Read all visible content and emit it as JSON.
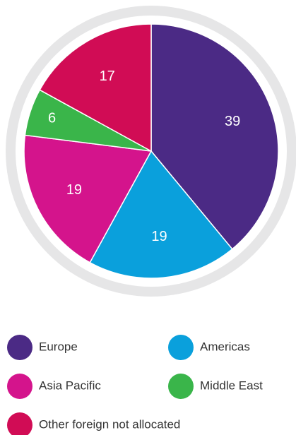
{
  "chart_data": {
    "type": "pie",
    "categories": [
      "Europe",
      "Americas",
      "Asia Pacific",
      "Middle East",
      "Other foreign not allocated"
    ],
    "values": [
      39,
      19,
      19,
      6,
      17
    ],
    "colors": [
      "#4b2a85",
      "#0aa0dc",
      "#d4148c",
      "#3ab54a",
      "#d10c55"
    ]
  }
}
